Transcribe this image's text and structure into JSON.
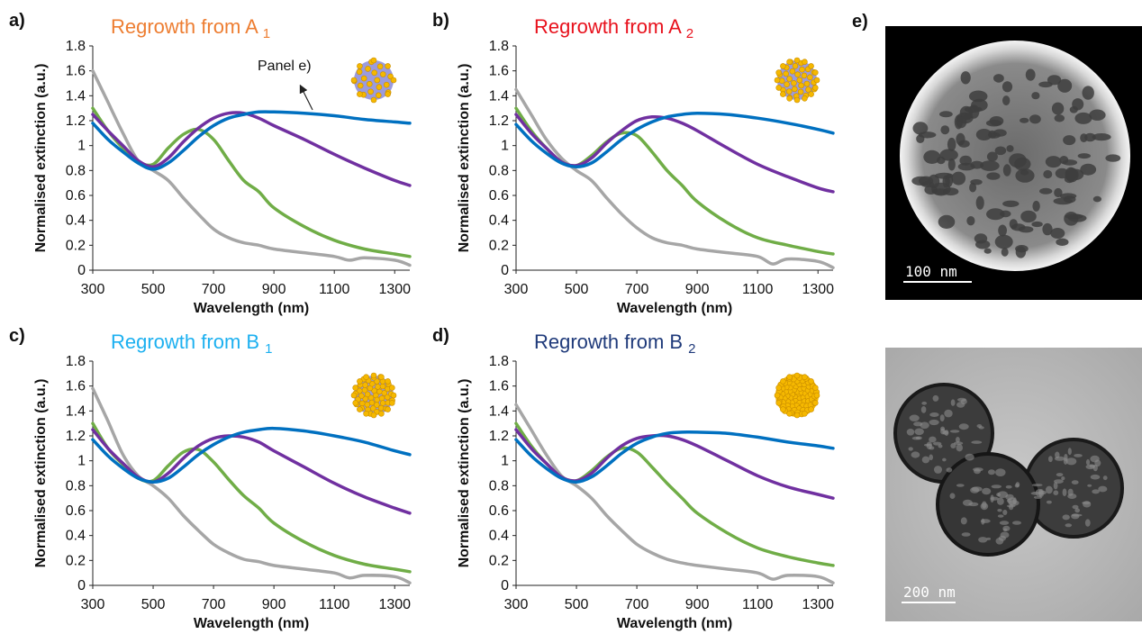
{
  "figure": {
    "panel_e_letter": "e)",
    "panel_e_top": {
      "scale_label": "100 nm"
    },
    "panel_e_bottom": {
      "scale_label": "200 nm"
    },
    "annotation": "Panel e)"
  },
  "colors": {
    "grey": "#a6a6a6",
    "green": "#70ad47",
    "purple": "#7030a0",
    "blue": "#0070c0",
    "particle_core": "#9b9bde",
    "particle_dots": "#f5b800"
  },
  "chart_data": [
    {
      "panel": "a)",
      "type": "line",
      "title": "Regrowth from A",
      "title_subscript": "1",
      "title_color": "#ed7d31",
      "xlabel": "Wavelength (nm)",
      "ylabel": "Normalised extinction (a.u.)",
      "xlim": [
        300,
        1350
      ],
      "ylim": [
        0,
        1.8
      ],
      "xticks": [
        "300",
        "500",
        "700",
        "900",
        "1100",
        "1300"
      ],
      "yticks": [
        "0",
        "0.2",
        "0.4",
        "0.6",
        "0.8",
        "1",
        "1.2",
        "1.4",
        "1.6",
        "1.8"
      ],
      "grid": false,
      "coverage": "low",
      "series": [
        {
          "color": "grey",
          "x": [
            300,
            350,
            400,
            450,
            500,
            550,
            600,
            650,
            700,
            750,
            800,
            850,
            900,
            1000,
            1100,
            1150,
            1200,
            1300,
            1350
          ],
          "y": [
            1.6,
            1.35,
            1.1,
            0.88,
            0.8,
            0.72,
            0.58,
            0.45,
            0.33,
            0.26,
            0.22,
            0.2,
            0.17,
            0.14,
            0.11,
            0.08,
            0.1,
            0.08,
            0.04
          ]
        },
        {
          "color": "green",
          "x": [
            300,
            350,
            400,
            450,
            500,
            550,
            600,
            650,
            700,
            750,
            800,
            850,
            900,
            1000,
            1100,
            1200,
            1300,
            1350
          ],
          "y": [
            1.3,
            1.12,
            0.98,
            0.87,
            0.85,
            0.98,
            1.09,
            1.13,
            1.05,
            0.88,
            0.72,
            0.63,
            0.5,
            0.35,
            0.24,
            0.17,
            0.13,
            0.11
          ]
        },
        {
          "color": "purple",
          "x": [
            300,
            350,
            400,
            450,
            500,
            550,
            600,
            650,
            700,
            750,
            800,
            850,
            900,
            1000,
            1100,
            1200,
            1300,
            1350
          ],
          "y": [
            1.25,
            1.12,
            1.0,
            0.88,
            0.83,
            0.9,
            1.03,
            1.14,
            1.22,
            1.26,
            1.26,
            1.22,
            1.16,
            1.05,
            0.93,
            0.82,
            0.72,
            0.68
          ]
        },
        {
          "color": "blue",
          "x": [
            300,
            350,
            400,
            450,
            500,
            550,
            600,
            650,
            700,
            750,
            800,
            850,
            900,
            1000,
            1100,
            1200,
            1300,
            1350
          ],
          "y": [
            1.18,
            1.05,
            0.95,
            0.86,
            0.81,
            0.86,
            0.96,
            1.07,
            1.16,
            1.22,
            1.25,
            1.27,
            1.27,
            1.26,
            1.24,
            1.21,
            1.19,
            1.18
          ]
        }
      ]
    },
    {
      "panel": "b)",
      "type": "line",
      "title": "Regrowth from A",
      "title_subscript": "2",
      "title_color": "#e8111c",
      "xlabel": "Wavelength (nm)",
      "ylabel": "Normalised extinction (a.u.)",
      "xlim": [
        300,
        1350
      ],
      "ylim": [
        0,
        1.8
      ],
      "xticks": [
        "300",
        "500",
        "700",
        "900",
        "1100",
        "1300"
      ],
      "yticks": [
        "0",
        "0.2",
        "0.4",
        "0.6",
        "0.8",
        "1",
        "1.2",
        "1.4",
        "1.6",
        "1.8"
      ],
      "grid": false,
      "coverage": "medium",
      "series": [
        {
          "color": "grey",
          "x": [
            300,
            350,
            400,
            450,
            500,
            550,
            600,
            650,
            700,
            750,
            800,
            850,
            900,
            1000,
            1100,
            1150,
            1200,
            1300,
            1350
          ],
          "y": [
            1.45,
            1.25,
            1.05,
            0.9,
            0.8,
            0.72,
            0.58,
            0.45,
            0.34,
            0.26,
            0.22,
            0.2,
            0.17,
            0.14,
            0.11,
            0.05,
            0.09,
            0.07,
            0.02
          ]
        },
        {
          "color": "green",
          "x": [
            300,
            350,
            400,
            450,
            500,
            550,
            600,
            650,
            700,
            750,
            800,
            850,
            900,
            1000,
            1100,
            1200,
            1300,
            1350
          ],
          "y": [
            1.3,
            1.12,
            0.98,
            0.87,
            0.84,
            0.92,
            1.03,
            1.1,
            1.08,
            0.95,
            0.8,
            0.68,
            0.55,
            0.38,
            0.26,
            0.2,
            0.15,
            0.13
          ]
        },
        {
          "color": "purple",
          "x": [
            300,
            350,
            400,
            450,
            500,
            550,
            600,
            650,
            700,
            750,
            800,
            850,
            900,
            1000,
            1100,
            1200,
            1300,
            1350
          ],
          "y": [
            1.25,
            1.1,
            0.98,
            0.87,
            0.84,
            0.9,
            1.02,
            1.12,
            1.2,
            1.23,
            1.22,
            1.18,
            1.12,
            0.98,
            0.85,
            0.75,
            0.66,
            0.63
          ]
        },
        {
          "color": "blue",
          "x": [
            300,
            350,
            400,
            450,
            500,
            550,
            600,
            650,
            700,
            750,
            800,
            850,
            900,
            1000,
            1100,
            1200,
            1300,
            1350
          ],
          "y": [
            1.17,
            1.04,
            0.94,
            0.86,
            0.83,
            0.86,
            0.95,
            1.05,
            1.13,
            1.19,
            1.23,
            1.25,
            1.26,
            1.25,
            1.22,
            1.18,
            1.13,
            1.1
          ]
        }
      ]
    },
    {
      "panel": "c)",
      "type": "line",
      "title": "Regrowth from B",
      "title_subscript": "1",
      "title_color": "#1cb0f0",
      "xlabel": "Wavelength (nm)",
      "ylabel": "Normalised extinction (a.u.)",
      "xlim": [
        300,
        1350
      ],
      "ylim": [
        0,
        1.8
      ],
      "xticks": [
        "300",
        "500",
        "700",
        "900",
        "1100",
        "1300"
      ],
      "yticks": [
        "0",
        "0.2",
        "0.4",
        "0.6",
        "0.8",
        "1",
        "1.2",
        "1.4",
        "1.6",
        "1.8"
      ],
      "grid": false,
      "coverage": "high",
      "series": [
        {
          "color": "grey",
          "x": [
            300,
            350,
            400,
            450,
            500,
            550,
            600,
            650,
            700,
            750,
            800,
            850,
            900,
            1000,
            1100,
            1150,
            1200,
            1300,
            1350
          ],
          "y": [
            1.58,
            1.32,
            1.05,
            0.88,
            0.8,
            0.7,
            0.56,
            0.44,
            0.33,
            0.26,
            0.21,
            0.19,
            0.16,
            0.13,
            0.1,
            0.06,
            0.08,
            0.07,
            0.02
          ]
        },
        {
          "color": "green",
          "x": [
            300,
            350,
            400,
            450,
            500,
            550,
            600,
            650,
            700,
            750,
            800,
            850,
            900,
            1000,
            1100,
            1200,
            1300,
            1350
          ],
          "y": [
            1.3,
            1.1,
            0.97,
            0.86,
            0.84,
            0.96,
            1.07,
            1.09,
            0.99,
            0.85,
            0.72,
            0.62,
            0.5,
            0.35,
            0.24,
            0.17,
            0.13,
            0.11
          ]
        },
        {
          "color": "purple",
          "x": [
            300,
            350,
            400,
            450,
            500,
            550,
            600,
            650,
            700,
            750,
            800,
            850,
            900,
            1000,
            1100,
            1200,
            1300,
            1350
          ],
          "y": [
            1.25,
            1.1,
            0.98,
            0.87,
            0.83,
            0.9,
            1.02,
            1.12,
            1.18,
            1.2,
            1.19,
            1.15,
            1.08,
            0.95,
            0.82,
            0.71,
            0.62,
            0.58
          ]
        },
        {
          "color": "blue",
          "x": [
            300,
            350,
            400,
            450,
            500,
            550,
            600,
            650,
            700,
            750,
            800,
            850,
            900,
            1000,
            1100,
            1200,
            1300,
            1350
          ],
          "y": [
            1.17,
            1.04,
            0.94,
            0.86,
            0.83,
            0.86,
            0.95,
            1.05,
            1.13,
            1.19,
            1.23,
            1.25,
            1.26,
            1.24,
            1.2,
            1.15,
            1.08,
            1.05
          ]
        }
      ]
    },
    {
      "panel": "d)",
      "type": "line",
      "title": "Regrowth from B",
      "title_subscript": "2",
      "title_color": "#1f3a7a",
      "xlabel": "Wavelength (nm)",
      "ylabel": "Normalised extinction (a.u.)",
      "xlim": [
        300,
        1350
      ],
      "ylim": [
        0,
        1.8
      ],
      "xticks": [
        "300",
        "500",
        "700",
        "900",
        "1100",
        "1300"
      ],
      "yticks": [
        "0",
        "0.2",
        "0.4",
        "0.6",
        "0.8",
        "1",
        "1.2",
        "1.4",
        "1.6",
        "1.8"
      ],
      "grid": false,
      "coverage": "full",
      "series": [
        {
          "color": "grey",
          "x": [
            300,
            350,
            400,
            450,
            500,
            550,
            600,
            650,
            700,
            750,
            800,
            850,
            900,
            1000,
            1100,
            1150,
            1200,
            1300,
            1350
          ],
          "y": [
            1.45,
            1.25,
            1.05,
            0.88,
            0.8,
            0.7,
            0.56,
            0.44,
            0.33,
            0.26,
            0.21,
            0.18,
            0.16,
            0.13,
            0.1,
            0.05,
            0.08,
            0.07,
            0.02
          ]
        },
        {
          "color": "green",
          "x": [
            300,
            350,
            400,
            450,
            500,
            550,
            600,
            650,
            700,
            750,
            800,
            850,
            900,
            1000,
            1100,
            1200,
            1300,
            1350
          ],
          "y": [
            1.3,
            1.12,
            0.98,
            0.87,
            0.84,
            0.92,
            1.03,
            1.1,
            1.07,
            0.95,
            0.82,
            0.7,
            0.58,
            0.42,
            0.3,
            0.23,
            0.18,
            0.16
          ]
        },
        {
          "color": "purple",
          "x": [
            300,
            350,
            400,
            450,
            500,
            550,
            600,
            650,
            700,
            750,
            800,
            850,
            900,
            1000,
            1100,
            1200,
            1300,
            1350
          ],
          "y": [
            1.25,
            1.1,
            0.98,
            0.87,
            0.84,
            0.9,
            1.02,
            1.12,
            1.18,
            1.2,
            1.2,
            1.17,
            1.12,
            1.0,
            0.88,
            0.79,
            0.73,
            0.7
          ]
        },
        {
          "color": "blue",
          "x": [
            300,
            350,
            400,
            450,
            500,
            550,
            600,
            650,
            700,
            750,
            800,
            850,
            900,
            1000,
            1100,
            1200,
            1300,
            1350
          ],
          "y": [
            1.17,
            1.04,
            0.94,
            0.86,
            0.83,
            0.87,
            0.96,
            1.06,
            1.14,
            1.19,
            1.22,
            1.23,
            1.23,
            1.22,
            1.19,
            1.15,
            1.12,
            1.1
          ]
        }
      ]
    }
  ]
}
